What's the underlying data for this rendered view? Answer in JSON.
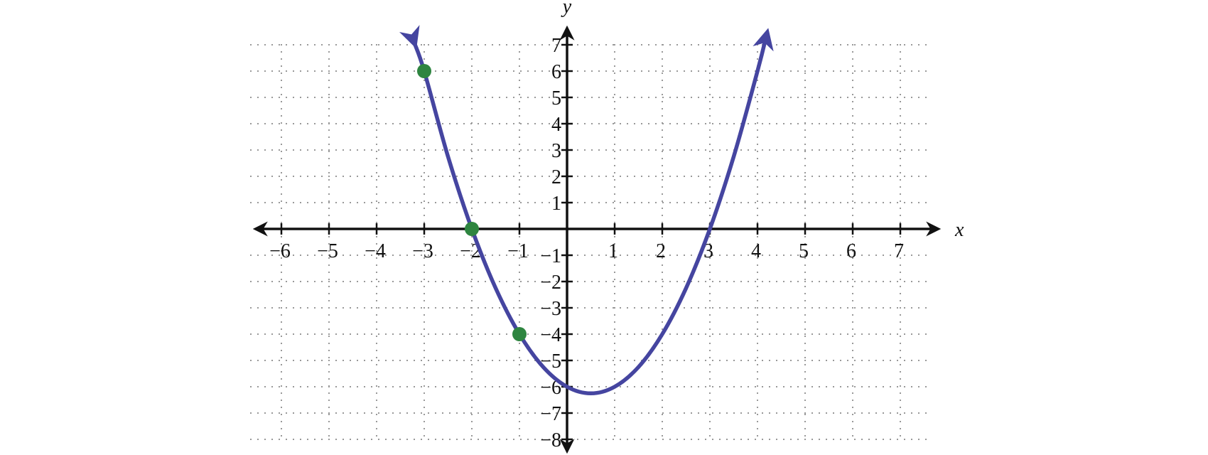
{
  "chart_data": {
    "type": "line",
    "xlabel": "x",
    "ylabel": "y",
    "xlim": [
      -6.6,
      7.6
    ],
    "ylim": [
      -8.4,
      7.6
    ],
    "x_ticks": [
      -6,
      -5,
      -4,
      -3,
      -2,
      -1,
      1,
      2,
      3,
      4,
      5,
      6,
      7
    ],
    "y_ticks": [
      -8,
      -7,
      -6,
      -5,
      -4,
      -3,
      -2,
      -1,
      1,
      2,
      3,
      4,
      5,
      6,
      7
    ],
    "x_tick_labels": [
      "−6",
      "−5",
      "−4",
      "−3",
      "−2",
      "−1",
      "1",
      "2",
      "3",
      "4",
      "5",
      "6",
      "7"
    ],
    "y_tick_labels": [
      "−8",
      "−7",
      "−6",
      "−5",
      "−4",
      "−3",
      "−2",
      "−1",
      "1",
      "2",
      "3",
      "4",
      "5",
      "6",
      "7"
    ],
    "grid": true,
    "grid_style": "dotted",
    "curve": {
      "x": [
        -3.2,
        -3,
        -2.5,
        -2,
        -1.5,
        -1,
        -0.5,
        0,
        0.5,
        1,
        1.5,
        2,
        2.5,
        3,
        3.5,
        4,
        4.2
      ],
      "y": [
        7.04,
        6,
        2.75,
        0,
        -2.25,
        -4,
        -5.25,
        -6,
        -6.25,
        -6,
        -5.25,
        -4,
        -2.25,
        0,
        2.75,
        6,
        7.44
      ],
      "color": "#4545a0",
      "arrows": true
    },
    "points": {
      "x": [
        -3,
        -2,
        -1
      ],
      "y": [
        6,
        0,
        -4
      ],
      "color": "#2e8540"
    },
    "axis_color": "#111111",
    "grid_color": "#999999"
  }
}
